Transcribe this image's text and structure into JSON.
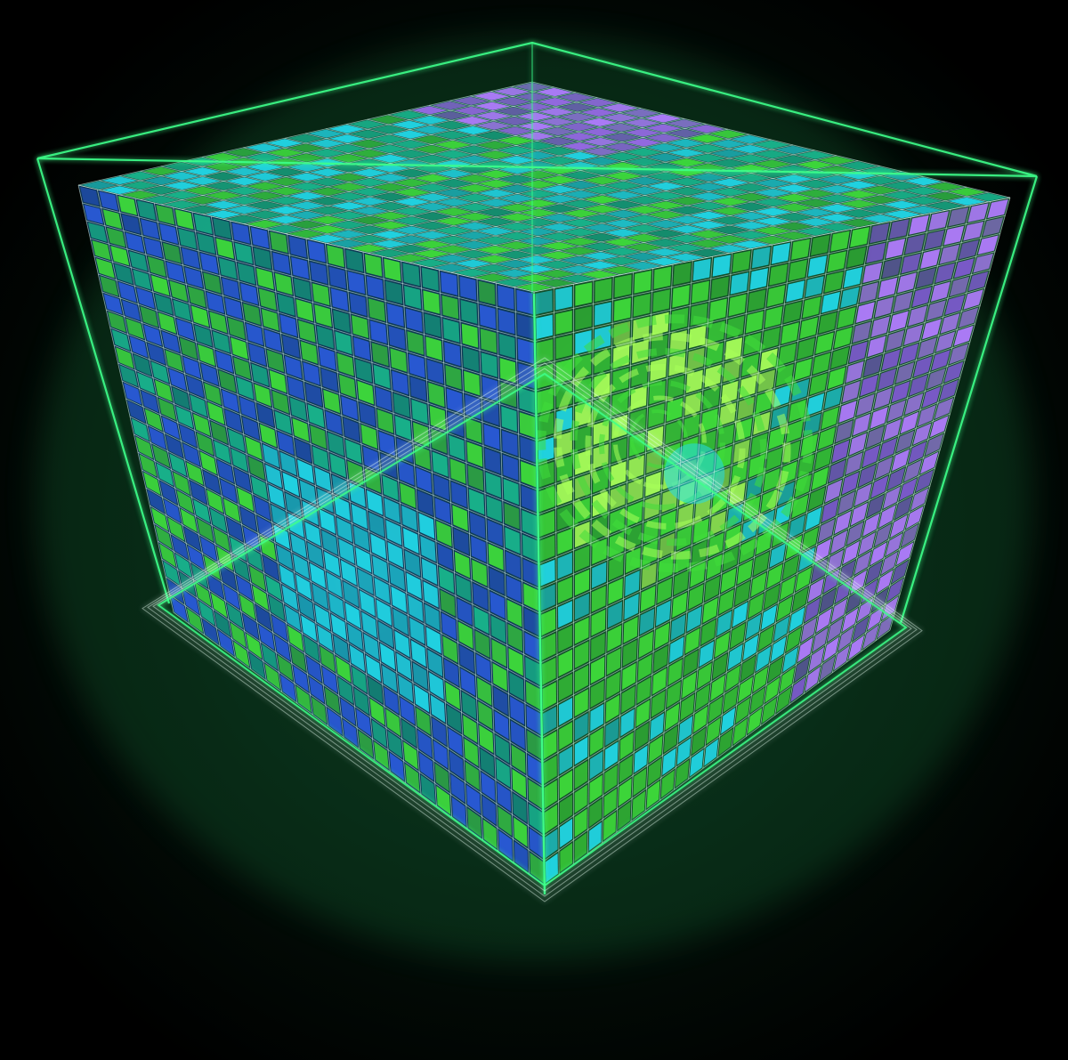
{
  "scene": {
    "subject": "voxel-cube",
    "palette": {
      "background": "#000000",
      "frame_green": "#3dff8a",
      "grid_white": "#e8fff4",
      "voxel_green": "#3fdc3a",
      "voxel_lime": "#a8ff5a",
      "voxel_cyan": "#22d8e8",
      "voxel_blue": "#2a5ad8",
      "voxel_teal": "#19b58c",
      "voxel_violet": "#b27cff",
      "glow": "#1f8f4a"
    }
  }
}
